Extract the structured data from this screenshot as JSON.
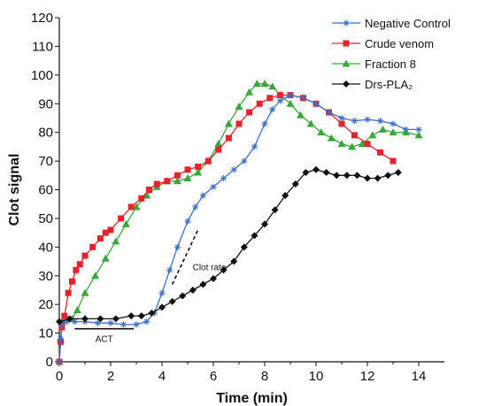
{
  "chart_data": {
    "type": "line",
    "xlabel": "Time (min)",
    "ylabel": "Clot signal",
    "xlim": [
      0,
      15
    ],
    "ylim": [
      0,
      120
    ],
    "x_ticks": [
      0,
      2,
      4,
      6,
      8,
      10,
      12,
      14
    ],
    "y_ticks": [
      0,
      10,
      20,
      30,
      40,
      50,
      60,
      70,
      80,
      90,
      100,
      110,
      120
    ],
    "grid": false,
    "legend_position": "top-right",
    "series": [
      {
        "name": "Negative Control",
        "color": "#3b6fc4",
        "marker": "asterisk",
        "points": [
          [
            0,
            0
          ],
          [
            0.05,
            8
          ],
          [
            0.1,
            13
          ],
          [
            0.3,
            14
          ],
          [
            0.6,
            14
          ],
          [
            1,
            14
          ],
          [
            1.5,
            13.5
          ],
          [
            2,
            13.5
          ],
          [
            2.5,
            13
          ],
          [
            3,
            13
          ],
          [
            3.4,
            14
          ],
          [
            3.7,
            17
          ],
          [
            4,
            24
          ],
          [
            4.3,
            32
          ],
          [
            4.6,
            40
          ],
          [
            5,
            49
          ],
          [
            5.3,
            54
          ],
          [
            5.6,
            58
          ],
          [
            6,
            61
          ],
          [
            6.4,
            64
          ],
          [
            6.8,
            67
          ],
          [
            7.2,
            70
          ],
          [
            7.6,
            75
          ],
          [
            8,
            83
          ],
          [
            8.3,
            88
          ],
          [
            8.6,
            91
          ],
          [
            9,
            93
          ],
          [
            9.5,
            92
          ],
          [
            10,
            90
          ],
          [
            10.5,
            87
          ],
          [
            11,
            85
          ],
          [
            11.5,
            84
          ],
          [
            12,
            84.5
          ],
          [
            12.5,
            84
          ],
          [
            13,
            83
          ],
          [
            13.5,
            81
          ],
          [
            14,
            81
          ]
        ]
      },
      {
        "name": "Crude venom",
        "color": "#e8222b",
        "marker": "square",
        "points": [
          [
            0,
            0
          ],
          [
            0.05,
            7
          ],
          [
            0.1,
            12
          ],
          [
            0.2,
            16
          ],
          [
            0.35,
            24
          ],
          [
            0.5,
            28
          ],
          [
            0.65,
            32
          ],
          [
            0.8,
            34
          ],
          [
            1,
            37
          ],
          [
            1.3,
            40
          ],
          [
            1.6,
            43
          ],
          [
            1.8,
            45
          ],
          [
            2,
            46
          ],
          [
            2.4,
            50
          ],
          [
            2.8,
            54
          ],
          [
            3.2,
            57
          ],
          [
            3.5,
            60
          ],
          [
            3.8,
            62
          ],
          [
            4.2,
            63
          ],
          [
            4.6,
            65
          ],
          [
            5,
            67
          ],
          [
            5.4,
            68
          ],
          [
            5.8,
            70
          ],
          [
            6.2,
            74
          ],
          [
            6.6,
            78
          ],
          [
            7,
            83
          ],
          [
            7.4,
            87
          ],
          [
            7.8,
            90
          ],
          [
            8.2,
            92
          ],
          [
            8.6,
            93
          ],
          [
            9,
            93
          ],
          [
            9.5,
            92
          ],
          [
            10,
            90
          ],
          [
            10.5,
            87
          ],
          [
            11,
            83
          ],
          [
            11.5,
            79
          ],
          [
            12,
            76
          ],
          [
            12.5,
            73
          ],
          [
            13,
            70
          ]
        ]
      },
      {
        "name": "Fraction 8",
        "color": "#37a73a",
        "marker": "triangle",
        "points": [
          [
            0,
            0
          ],
          [
            0.05,
            8
          ],
          [
            0.1,
            14
          ],
          [
            0.5,
            15
          ],
          [
            0.7,
            18
          ],
          [
            1,
            24
          ],
          [
            1.4,
            30
          ],
          [
            1.8,
            36
          ],
          [
            2.2,
            42
          ],
          [
            2.6,
            48
          ],
          [
            3,
            54
          ],
          [
            3.4,
            58
          ],
          [
            3.8,
            61
          ],
          [
            4.2,
            63
          ],
          [
            4.6,
            63
          ],
          [
            5,
            64
          ],
          [
            5.4,
            66
          ],
          [
            5.8,
            70
          ],
          [
            6.2,
            76
          ],
          [
            6.6,
            83
          ],
          [
            7,
            89
          ],
          [
            7.4,
            94
          ],
          [
            7.7,
            97
          ],
          [
            8,
            97
          ],
          [
            8.3,
            96
          ],
          [
            8.6,
            93
          ],
          [
            9,
            90
          ],
          [
            9.4,
            86
          ],
          [
            9.8,
            83
          ],
          [
            10.2,
            80
          ],
          [
            10.6,
            78
          ],
          [
            11,
            76
          ],
          [
            11.4,
            75
          ],
          [
            11.8,
            76
          ],
          [
            12.2,
            79
          ],
          [
            12.6,
            81
          ],
          [
            13,
            80
          ],
          [
            13.5,
            80
          ],
          [
            14,
            79
          ]
        ]
      },
      {
        "name": "Drs-PLA₂",
        "color": "#111111",
        "marker": "diamond",
        "points": [
          [
            0,
            14
          ],
          [
            0.4,
            15
          ],
          [
            1,
            15
          ],
          [
            1.6,
            15
          ],
          [
            2.2,
            15
          ],
          [
            2.8,
            16
          ],
          [
            3.2,
            16
          ],
          [
            3.6,
            17
          ],
          [
            4,
            19
          ],
          [
            4.4,
            21
          ],
          [
            4.8,
            23
          ],
          [
            5.2,
            25
          ],
          [
            5.6,
            27
          ],
          [
            6,
            29
          ],
          [
            6.4,
            32
          ],
          [
            6.8,
            35
          ],
          [
            7.2,
            40
          ],
          [
            7.6,
            44
          ],
          [
            8,
            48
          ],
          [
            8.4,
            53
          ],
          [
            8.8,
            58
          ],
          [
            9.2,
            62
          ],
          [
            9.6,
            66
          ],
          [
            10,
            67
          ],
          [
            10.4,
            66
          ],
          [
            10.8,
            65
          ],
          [
            11.2,
            65
          ],
          [
            11.6,
            65
          ],
          [
            12,
            64
          ],
          [
            12.4,
            64
          ],
          [
            12.8,
            65
          ],
          [
            13.2,
            66
          ]
        ]
      }
    ],
    "annotations": [
      {
        "text": "ACT",
        "type": "bar",
        "x_range": [
          0.6,
          2.9
        ],
        "y": 11.5
      },
      {
        "text": "Clot rate",
        "type": "dashed-slope",
        "from": [
          4.4,
          27
        ],
        "to": [
          5.4,
          46
        ]
      }
    ]
  }
}
